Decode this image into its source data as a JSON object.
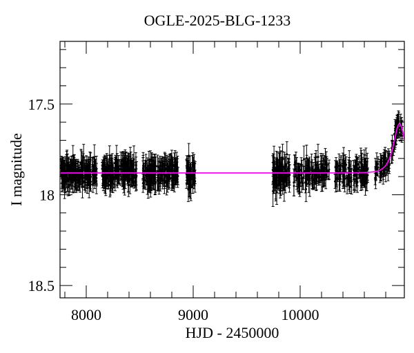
{
  "chart_data": {
    "type": "scatter",
    "title": "OGLE-2025-BLG-1233",
    "xlabel": "HJD - 2450000",
    "ylabel": "I magnitude",
    "grid": false,
    "legend": null,
    "point_color": "#000000",
    "background_color": "#ffffff",
    "x_axis": {
      "min": 7755,
      "max": 10974,
      "major_ticks": [
        8000,
        9000,
        10000
      ],
      "major_tick_labels": [
        "8000",
        "9000",
        "10000"
      ],
      "minor_tick_step": 200
    },
    "y_axis": {
      "min": 17.155,
      "max": 18.568,
      "inverted_magnitude_scale": true,
      "major_ticks": [
        17.5,
        18,
        18.5
      ],
      "major_tick_labels": [
        "17.5",
        "18",
        "18.5"
      ],
      "minor_tick_step": 0.1
    },
    "baseline_mag": 17.88,
    "model_curve": {
      "color": "#ff00ff",
      "shape": "paczynski_microlensing",
      "t0": 10929,
      "tE": 63,
      "u0": 1.09,
      "peak_mag": 17.61,
      "baseline_mag": 17.88
    },
    "seasons": [
      {
        "name": "season-1",
        "t_start": 7761,
        "t_end": 8097,
        "n": 180,
        "mag_mean": 17.88,
        "mag_sigma": 0.032,
        "err_min": 0.03,
        "err_max": 0.08
      },
      {
        "name": "season-2",
        "t_start": 8148,
        "t_end": 8471,
        "n": 180,
        "mag_mean": 17.88,
        "mag_sigma": 0.032,
        "err_min": 0.03,
        "err_max": 0.08
      },
      {
        "name": "season-3",
        "t_start": 8529,
        "t_end": 8858,
        "n": 170,
        "mag_mean": 17.88,
        "mag_sigma": 0.033,
        "err_min": 0.03,
        "err_max": 0.08
      },
      {
        "name": "season-4",
        "t_start": 8935,
        "t_end": 9019,
        "n": 50,
        "mag_mean": 17.88,
        "mag_sigma": 0.034,
        "err_min": 0.03,
        "err_max": 0.08
      },
      {
        "name": "season-5",
        "t_start": 9742,
        "t_end": 9903,
        "n": 95,
        "mag_mean": 17.885,
        "mag_sigma": 0.045,
        "err_min": 0.032,
        "err_max": 0.085
      },
      {
        "name": "season-6",
        "t_start": 9935,
        "t_end": 10271,
        "n": 118,
        "mag_mean": 17.88,
        "mag_sigma": 0.033,
        "err_min": 0.03,
        "err_max": 0.08
      },
      {
        "name": "season-7",
        "t_start": 10322,
        "t_end": 10632,
        "n": 115,
        "mag_mean": 17.88,
        "mag_sigma": 0.032,
        "err_min": 0.03,
        "err_max": 0.08
      },
      {
        "name": "rising-event-2025",
        "t_start": 10696,
        "t_end": 10955,
        "n": 95,
        "follow_model": true,
        "mag_sigma": 0.022,
        "err_min": 0.028,
        "err_max": 0.065
      }
    ]
  }
}
